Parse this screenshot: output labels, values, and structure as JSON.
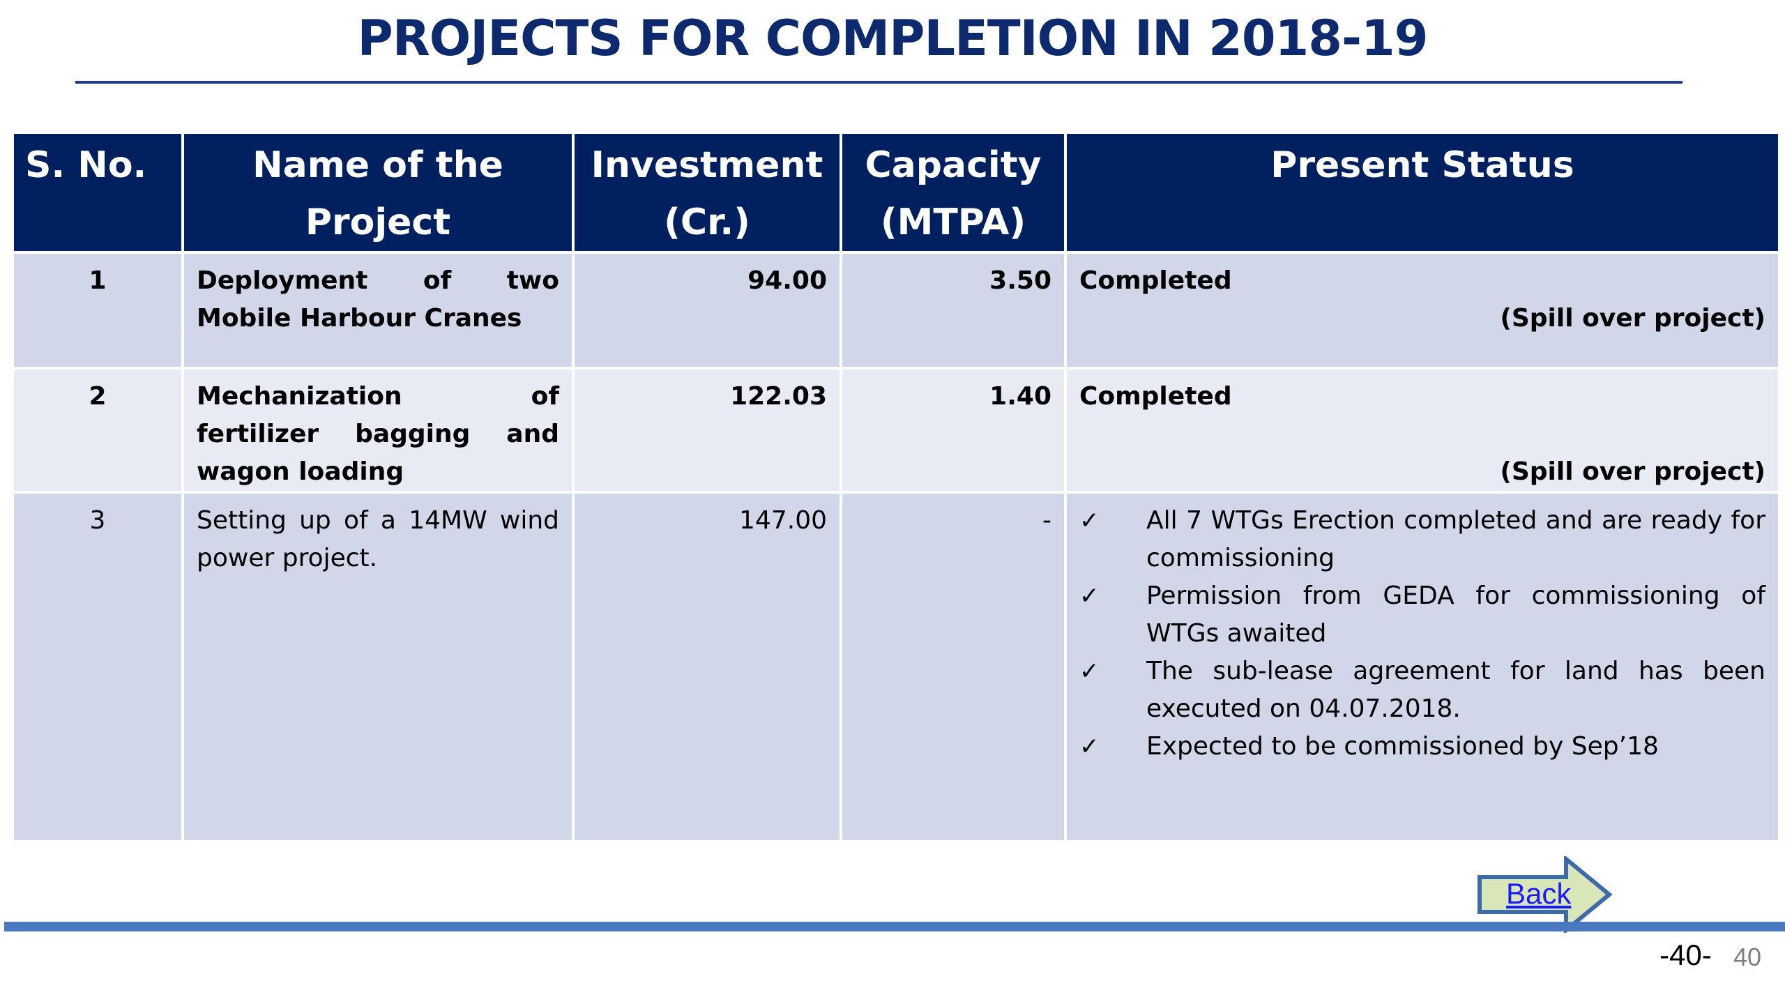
{
  "title": "PROJECTS FOR COMPLETION IN 2018-19",
  "table": {
    "headers": {
      "sno": "S. No.",
      "name": "Name of the Project",
      "investment_line1": "Investment",
      "investment_line2": "(Cr.)",
      "capacity_line1": "Capacity",
      "capacity_line2": "(MTPA)",
      "status": "Present Status"
    },
    "rows": [
      {
        "sno": "1",
        "name": "Deployment of two Mobile Harbour Cranes",
        "investment": "94.00",
        "capacity": "3.50",
        "status": "Completed",
        "note": "(Spill over project)"
      },
      {
        "sno": "2",
        "name": "Mechanization of fertilizer bagging and wagon loading",
        "investment": "122.03",
        "capacity": "1.40",
        "status": "Completed",
        "note": "(Spill over project)"
      },
      {
        "sno": "3",
        "name": "Setting up of a 14MW wind power project.",
        "investment": "147.00",
        "capacity": "-",
        "status_points": [
          "All 7 WTGs Erection completed and are ready for commissioning",
          "Permission from GEDA for commissioning of WTGs awaited",
          "The sub-lease agreement for land has been executed on 04.07.2018.",
          "Expected to be commissioned by Sep’18"
        ]
      }
    ]
  },
  "tick_glyph": "✓",
  "back_label": "Back",
  "page_label": "-40-",
  "slide_number": "40"
}
